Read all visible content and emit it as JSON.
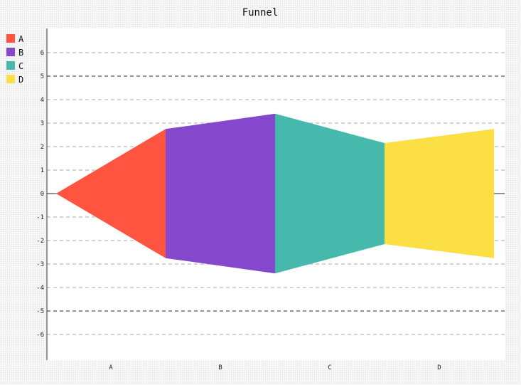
{
  "chart_data": {
    "type": "funnel",
    "title": "Funnel",
    "categories": [
      "A",
      "B",
      "C",
      "D"
    ],
    "series": [
      {
        "name": "A",
        "value": 5.5,
        "color": "#ff5440"
      },
      {
        "name": "B",
        "value": 6.8,
        "color": "#8547cc"
      },
      {
        "name": "C",
        "value": 4.3,
        "color": "#46b8ac"
      },
      {
        "name": "D",
        "value": 5.5,
        "color": "#fcde45"
      }
    ],
    "ylim": [
      -7,
      7
    ],
    "yticks": [
      -6,
      -5,
      -4,
      -3,
      -2,
      -1,
      0,
      1,
      2,
      3,
      4,
      5,
      6
    ],
    "major_yticks": [
      -5,
      0,
      5
    ],
    "grid": true,
    "legend_position": "top-left"
  }
}
